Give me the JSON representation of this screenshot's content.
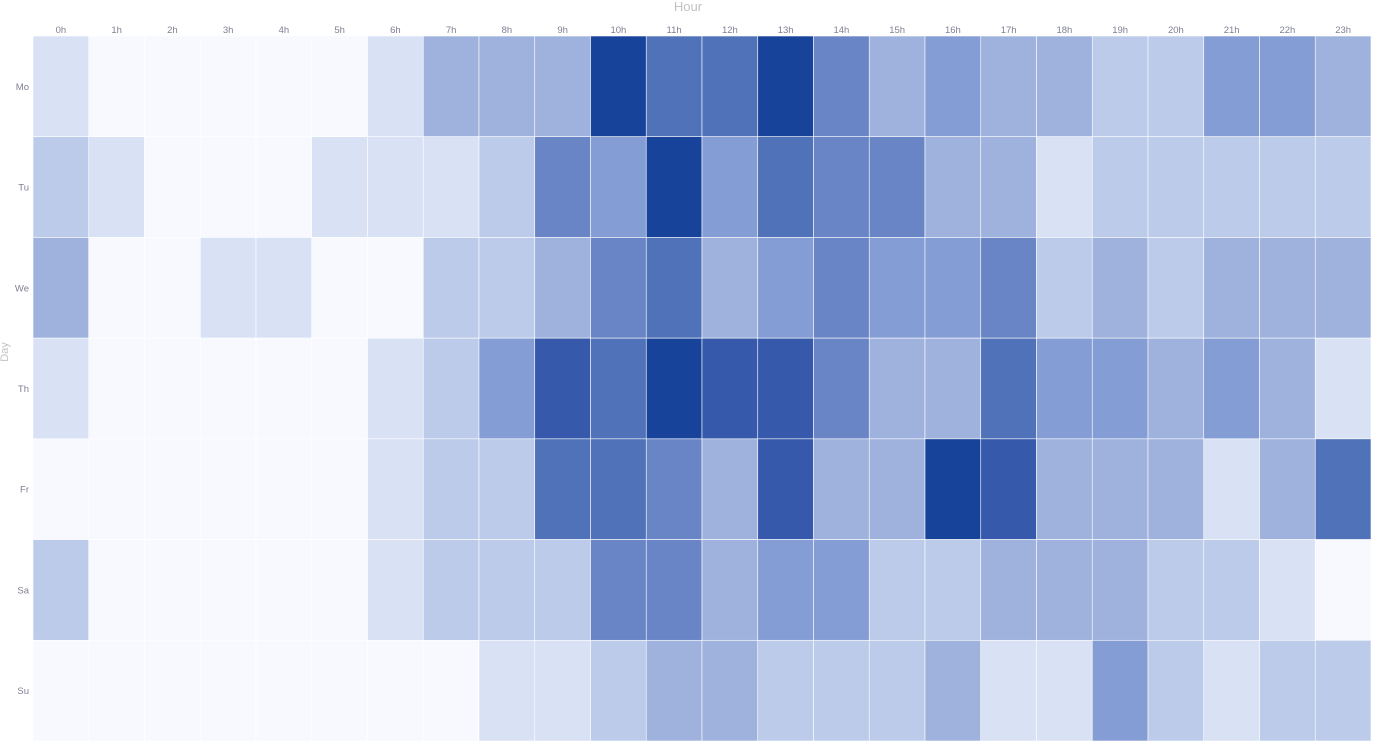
{
  "chart_data": {
    "type": "heatmap",
    "title": "",
    "xlabel": "Hour",
    "ylabel": "Day",
    "x_categories": [
      "0h",
      "1h",
      "2h",
      "3h",
      "4h",
      "5h",
      "6h",
      "7h",
      "8h",
      "9h",
      "10h",
      "11h",
      "12h",
      "13h",
      "14h",
      "15h",
      "16h",
      "17h",
      "18h",
      "19h",
      "20h",
      "21h",
      "22h",
      "23h"
    ],
    "y_categories": [
      "Mo",
      "Tu",
      "We",
      "Th",
      "Fr",
      "Sa",
      "Su"
    ],
    "x_axis_position": "top",
    "color_scale": [
      "#f8f9fe",
      "#d9e2f5",
      "#bccbe9",
      "#9fb2dd",
      "#849dd5",
      "#6985c6",
      "#4f72b8",
      "#3659ab",
      "#18439a"
    ],
    "value_range": [
      0,
      8
    ],
    "values": [
      [
        1,
        0,
        0,
        0,
        0,
        0,
        1,
        3,
        3,
        3,
        8,
        6,
        6,
        8,
        5,
        3,
        4,
        3,
        3,
        2,
        2,
        4,
        4,
        3
      ],
      [
        2,
        1,
        0,
        0,
        0,
        1,
        1,
        1,
        2,
        5,
        4,
        8,
        4,
        6,
        5,
        5,
        3,
        3,
        1,
        2,
        2,
        2,
        2,
        2
      ],
      [
        3,
        0,
        0,
        1,
        1,
        0,
        0,
        2,
        2,
        3,
        5,
        6,
        3,
        4,
        5,
        4,
        4,
        5,
        2,
        3,
        2,
        3,
        3,
        3
      ],
      [
        1,
        0,
        0,
        0,
        0,
        0,
        1,
        2,
        4,
        7,
        6,
        8,
        7,
        7,
        5,
        3,
        3,
        6,
        4,
        4,
        3,
        4,
        3,
        1
      ],
      [
        0,
        0,
        0,
        0,
        0,
        0,
        1,
        2,
        2,
        6,
        6,
        5,
        3,
        7,
        3,
        3,
        8,
        7,
        3,
        3,
        3,
        1,
        3,
        6
      ],
      [
        2,
        0,
        0,
        0,
        0,
        0,
        1,
        2,
        2,
        2,
        5,
        5,
        3,
        4,
        4,
        2,
        2,
        3,
        3,
        3,
        2,
        2,
        1,
        0
      ],
      [
        0,
        0,
        0,
        0,
        0,
        0,
        0,
        0,
        1,
        1,
        2,
        3,
        3,
        2,
        2,
        2,
        3,
        1,
        1,
        4,
        2,
        1,
        2,
        2
      ]
    ],
    "grid": false,
    "legend": "none"
  }
}
